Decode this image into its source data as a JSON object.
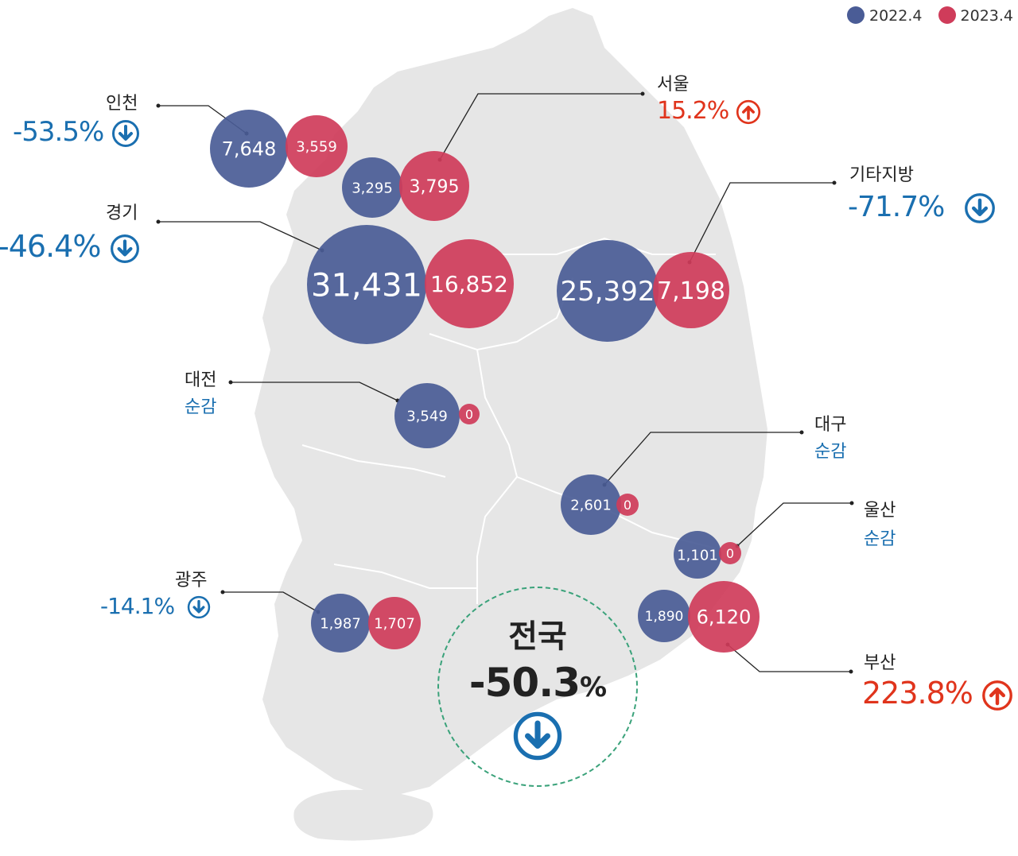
{
  "legend": [
    {
      "label": "2022.4",
      "color": "#4a5c96"
    },
    {
      "label": "2023.4",
      "color": "#cf3c5a"
    }
  ],
  "regions": {
    "incheon": {
      "name": "인천",
      "change": "-53.5%",
      "direction": "down",
      "v2022": "7,648",
      "v2023": "3,559"
    },
    "seoul": {
      "name": "서울",
      "change": "15.2%",
      "direction": "up",
      "v2022": "3,295",
      "v2023": "3,795"
    },
    "gyeonggi": {
      "name": "경기",
      "change": "-46.4%",
      "direction": "down",
      "v2022": "31,431",
      "v2023": "16,852"
    },
    "other": {
      "name": "기타지방",
      "change": "-71.7%",
      "direction": "down",
      "v2022": "25,392",
      "v2023": "7,198"
    },
    "daejeon": {
      "name": "대전",
      "change": "순감",
      "direction": "none",
      "v2022": "3,549",
      "v2023": "0"
    },
    "daegu": {
      "name": "대구",
      "change": "순감",
      "direction": "none",
      "v2022": "2,601",
      "v2023": "0"
    },
    "ulsan": {
      "name": "울산",
      "change": "순감",
      "direction": "none",
      "v2022": "1,101",
      "v2023": "0"
    },
    "gwangju": {
      "name": "광주",
      "change": "-14.1%",
      "direction": "down",
      "v2022": "1,987",
      "v2023": "1,707"
    },
    "busan": {
      "name": "부산",
      "change": "223.8%",
      "direction": "up",
      "v2022": "1,890",
      "v2023": "6,120"
    }
  },
  "national": {
    "title": "전국",
    "value": "-50.3",
    "unit": "%",
    "direction": "down"
  },
  "colors": {
    "blue_bubble": "#4a5c96",
    "red_bubble": "#cf3c5a",
    "down_text": "#1a6fb0",
    "up_text": "#e0341c",
    "map_fill": "#e6e6e6"
  },
  "icons": {
    "down": "arrow-down-circle-icon",
    "up": "arrow-up-circle-icon"
  }
}
